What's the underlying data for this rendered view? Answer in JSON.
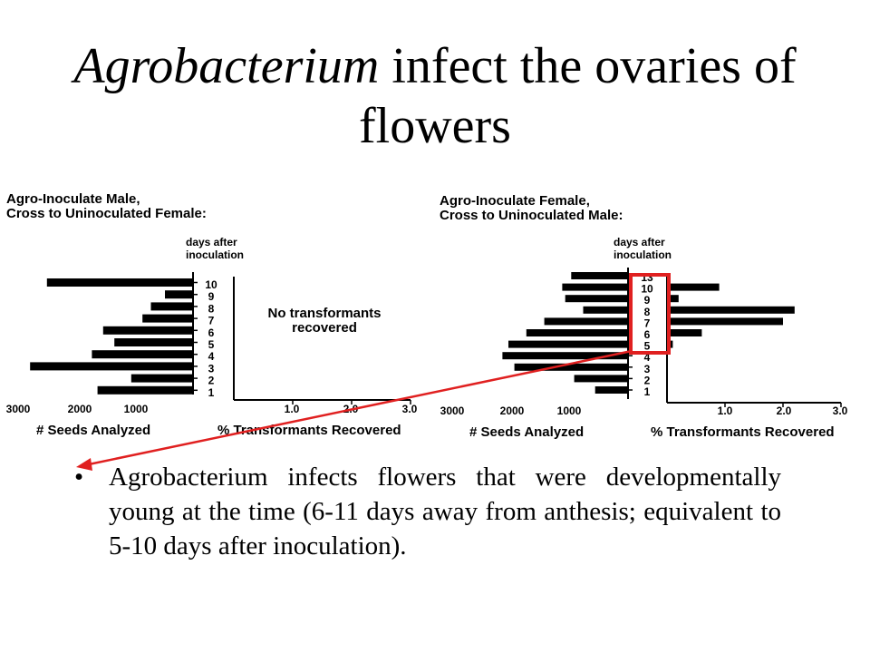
{
  "title": {
    "italic": "Agrobacterium",
    "rest": " infect the ovaries of flowers"
  },
  "bullet": {
    "symbol": "•",
    "text": "Agrobacterium infects flowers that were developmentally young at the time (6-11 days away from anthesis; equivalent to 5-10 days after inoculation)."
  },
  "colors": {
    "highlight": "#e02020",
    "bars": "#000000"
  },
  "chart_data": [
    {
      "type": "bar",
      "orientation": "horizontal",
      "title_lines": [
        "Agro-Inoculate Male,",
        "Cross to Uninoculated Female:"
      ],
      "axis_title_lines": [
        "days after",
        "inoculation"
      ],
      "categories": [
        "10",
        "9",
        "8",
        "7",
        "6",
        "5",
        "4",
        "3",
        "2",
        "1"
      ],
      "left_panel": {
        "xlabel": "# Seeds Analyzed",
        "ticks": [
          "3000",
          "2000",
          "1000"
        ],
        "xlim": [
          0,
          3000
        ],
        "values": [
          2600,
          500,
          750,
          900,
          1600,
          1400,
          1800,
          2900,
          1100,
          1700
        ]
      },
      "right_panel": {
        "xlabel": "% Transformants Recovered",
        "ticks": [
          "1.0",
          "2.0",
          "3.0"
        ],
        "xlim": [
          0,
          3.0
        ],
        "values": [
          0,
          0,
          0,
          0,
          0,
          0,
          0,
          0,
          0,
          0
        ],
        "annotation_lines": [
          "No transformants",
          "recovered"
        ]
      }
    },
    {
      "type": "bar",
      "orientation": "horizontal",
      "title_lines": [
        "Agro-Inoculate Female,",
        "Cross to Uninoculated Male:"
      ],
      "axis_title_lines": [
        "days after",
        "inoculation"
      ],
      "categories": [
        "13",
        "10",
        "9",
        "8",
        "7",
        "6",
        "5",
        "4",
        "3",
        "2",
        "1"
      ],
      "left_panel": {
        "xlabel": "# Seeds Analyzed",
        "ticks": [
          "3000",
          "2000",
          "1000"
        ],
        "xlim": [
          0,
          3000
        ],
        "values": [
          950,
          1100,
          1050,
          750,
          1400,
          1700,
          2000,
          2100,
          1900,
          900,
          550
        ]
      },
      "right_panel": {
        "xlabel": "% Transformants Recovered",
        "ticks": [
          "1.0",
          "2.0",
          "3.0"
        ],
        "xlim": [
          0,
          3.0
        ],
        "values": [
          0,
          0.9,
          0.2,
          2.2,
          2.0,
          0.6,
          0.1,
          0,
          0,
          0,
          0
        ]
      },
      "highlight_categories": [
        "10",
        "9",
        "8",
        "7",
        "6",
        "5"
      ]
    }
  ]
}
